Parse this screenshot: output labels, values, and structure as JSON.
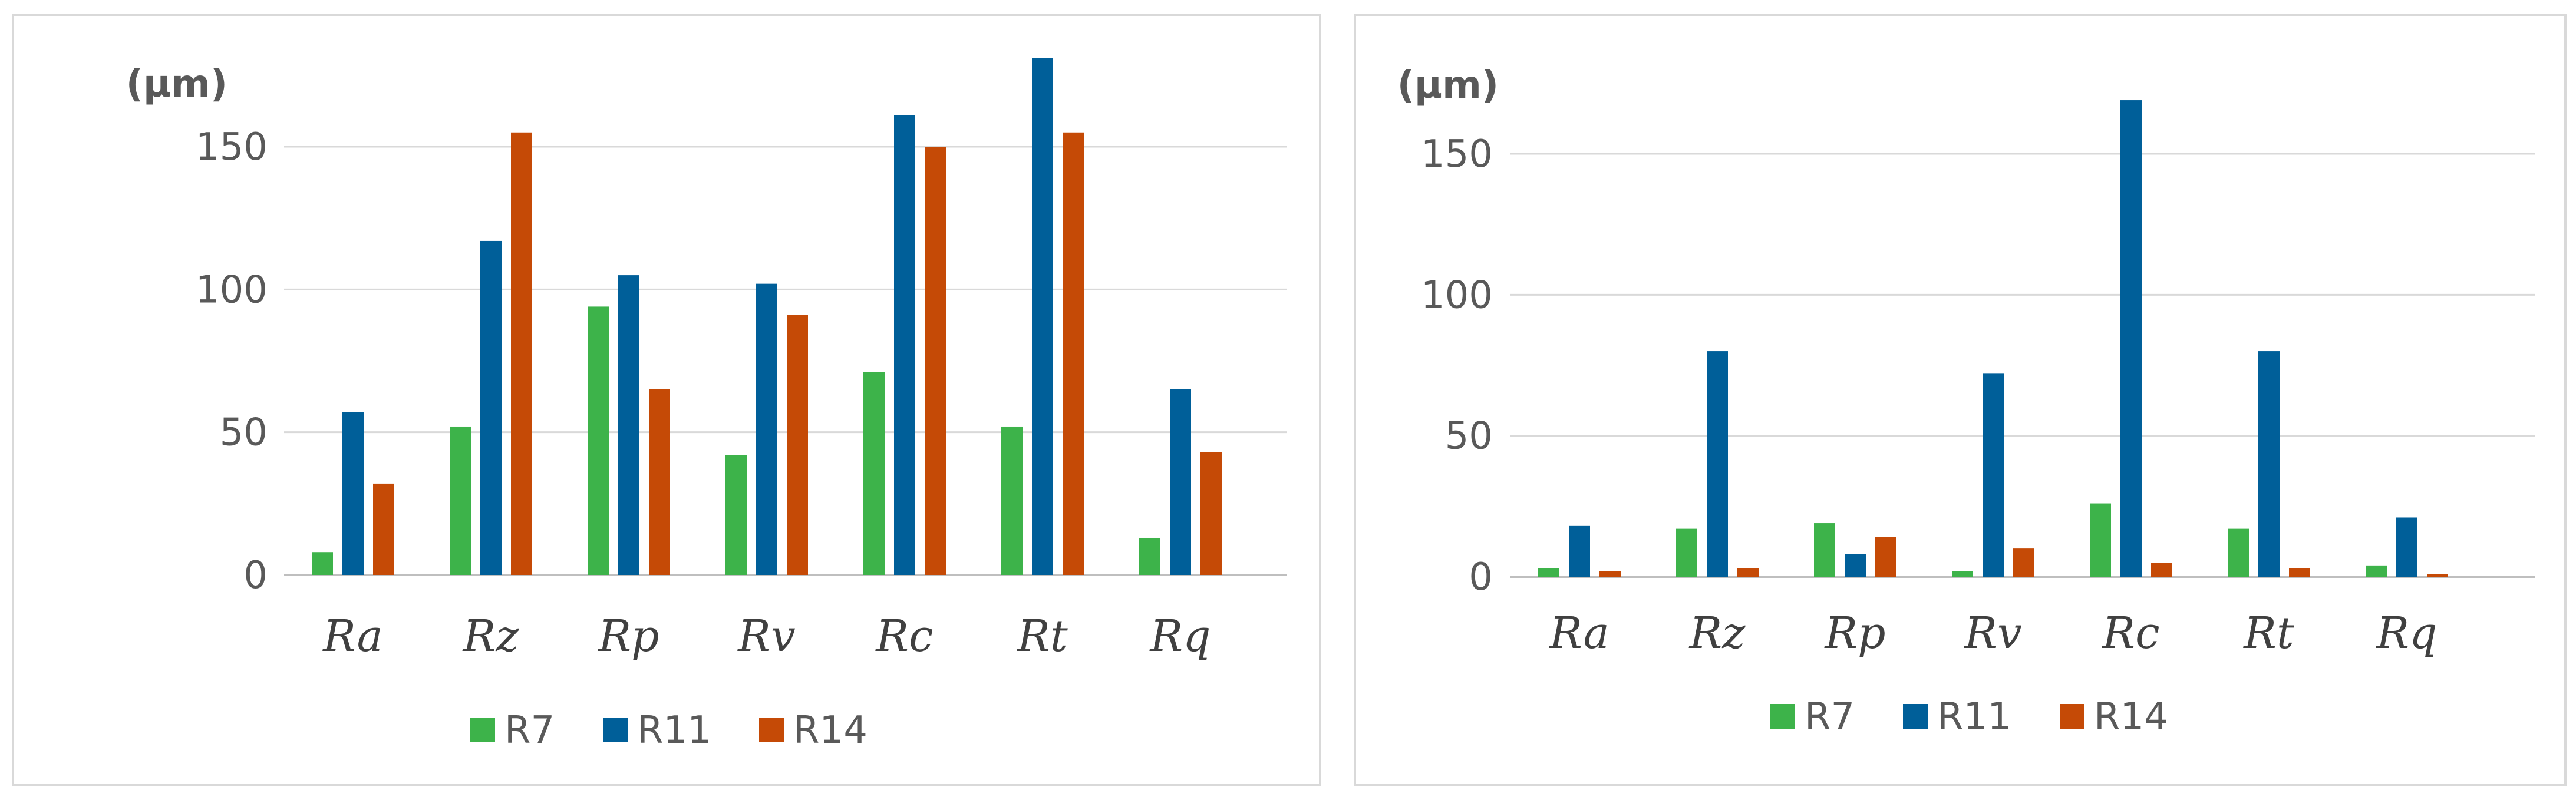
{
  "colors": {
    "R7": "#3db34a",
    "R11": "#005f99",
    "R14": "#c54a06",
    "grid": "#d9d9d9",
    "axis": "#bfbfbf"
  },
  "chart_data": [
    {
      "type": "bar",
      "unit_label": "(µm)",
      "categories": [
        "Ra",
        "Rz",
        "Rp",
        "Rv",
        "Rc",
        "Rt",
        "Rq"
      ],
      "series": [
        {
          "name": "R7",
          "values": [
            8,
            52,
            94,
            42,
            71,
            52,
            13
          ]
        },
        {
          "name": "R11",
          "values": [
            57,
            117,
            105,
            102,
            161,
            181,
            65
          ]
        },
        {
          "name": "R14",
          "values": [
            32,
            155,
            65,
            91,
            150,
            155,
            43
          ]
        }
      ],
      "y_ticks": [
        "0",
        "50",
        "100",
        "150"
      ],
      "ylim": [
        0,
        180
      ],
      "grid": true,
      "legend_position": "bottom"
    },
    {
      "type": "bar",
      "unit_label": "(µm)",
      "categories": [
        "Ra",
        "Rz",
        "Rp",
        "Rv",
        "Rc",
        "Rt",
        "Rq"
      ],
      "series": [
        {
          "name": "R7",
          "values": [
            3,
            17,
            19,
            2,
            26,
            17,
            4
          ]
        },
        {
          "name": "R11",
          "values": [
            18,
            80,
            8,
            72,
            169,
            80,
            21
          ]
        },
        {
          "name": "R14",
          "values": [
            2,
            3,
            14,
            10,
            5,
            3,
            1
          ]
        }
      ],
      "y_ticks": [
        "0",
        "50",
        "100",
        "150"
      ],
      "ylim": [
        0,
        175
      ],
      "grid": true,
      "legend_position": "bottom"
    }
  ]
}
